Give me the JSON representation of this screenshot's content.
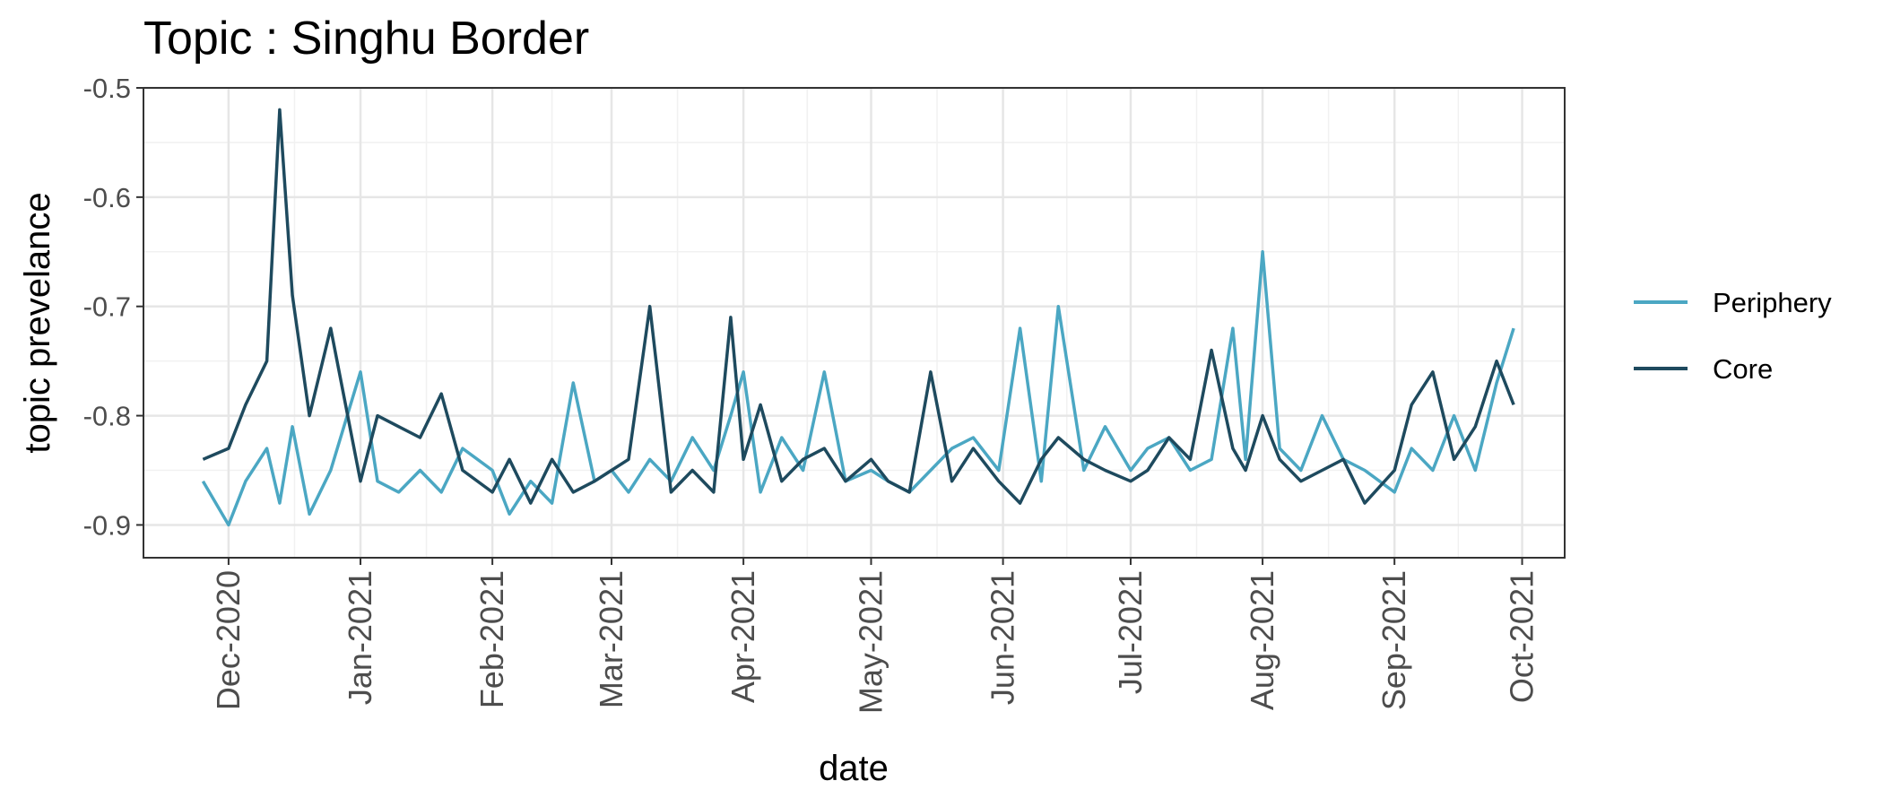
{
  "chart_data": {
    "type": "line",
    "title": "Topic : Singhu Border",
    "xlabel": "date",
    "ylabel": "topic prevelance",
    "ylim": [
      -0.93,
      -0.5
    ],
    "yticks": [
      -0.9,
      -0.8,
      -0.7,
      -0.6,
      -0.5
    ],
    "ytick_labels": [
      "-0.9",
      "-0.8",
      "-0.7",
      "-0.6",
      "-0.5"
    ],
    "xlim": [
      "2020-11-11",
      "2021-10-11"
    ],
    "xticks": [
      "2020-12-01",
      "2021-01-01",
      "2021-02-01",
      "2021-03-01",
      "2021-04-01",
      "2021-05-01",
      "2021-06-01",
      "2021-07-01",
      "2021-08-01",
      "2021-09-01",
      "2021-10-01"
    ],
    "xtick_labels": [
      "Dec-2020",
      "Jan-2021",
      "Feb-2021",
      "Mar-2021",
      "Apr-2021",
      "May-2021",
      "Jun-2021",
      "Jul-2021",
      "Aug-2021",
      "Sep-2021",
      "Oct-2021"
    ],
    "grid": true,
    "legend_position": "right",
    "x": [
      "2020-11-25",
      "2020-12-01",
      "2020-12-05",
      "2020-12-10",
      "2020-12-13",
      "2020-12-16",
      "2020-12-20",
      "2020-12-25",
      "2021-01-01",
      "2021-01-05",
      "2021-01-10",
      "2021-01-15",
      "2021-01-20",
      "2021-01-25",
      "2021-02-01",
      "2021-02-05",
      "2021-02-10",
      "2021-02-15",
      "2021-02-20",
      "2021-02-25",
      "2021-03-01",
      "2021-03-05",
      "2021-03-10",
      "2021-03-15",
      "2021-03-20",
      "2021-03-25",
      "2021-03-29",
      "2021-04-01",
      "2021-04-05",
      "2021-04-10",
      "2021-04-15",
      "2021-04-20",
      "2021-04-25",
      "2021-05-01",
      "2021-05-05",
      "2021-05-10",
      "2021-05-15",
      "2021-05-20",
      "2021-05-25",
      "2021-05-31",
      "2021-06-05",
      "2021-06-10",
      "2021-06-14",
      "2021-06-20",
      "2021-06-25",
      "2021-07-01",
      "2021-07-05",
      "2021-07-10",
      "2021-07-15",
      "2021-07-20",
      "2021-07-25",
      "2021-07-28",
      "2021-08-01",
      "2021-08-05",
      "2021-08-10",
      "2021-08-15",
      "2021-08-20",
      "2021-08-25",
      "2021-09-01",
      "2021-09-05",
      "2021-09-10",
      "2021-09-15",
      "2021-09-20",
      "2021-09-25",
      "2021-09-29"
    ],
    "series": [
      {
        "name": "Periphery",
        "color": "#4ba7c3",
        "values": [
          -0.86,
          -0.9,
          -0.86,
          -0.83,
          -0.88,
          -0.81,
          -0.89,
          -0.85,
          -0.76,
          -0.86,
          -0.87,
          -0.85,
          -0.87,
          -0.83,
          -0.85,
          -0.89,
          -0.86,
          -0.88,
          -0.77,
          -0.86,
          -0.85,
          -0.87,
          -0.84,
          -0.86,
          -0.82,
          -0.85,
          -0.8,
          -0.76,
          -0.87,
          -0.82,
          -0.85,
          -0.76,
          -0.86,
          -0.85,
          -0.86,
          -0.87,
          -0.85,
          -0.83,
          -0.82,
          -0.85,
          -0.72,
          -0.86,
          -0.7,
          -0.85,
          -0.81,
          -0.85,
          -0.83,
          -0.82,
          -0.85,
          -0.84,
          -0.72,
          -0.84,
          -0.65,
          -0.83,
          -0.85,
          -0.8,
          -0.84,
          -0.85,
          -0.87,
          -0.83,
          -0.85,
          -0.8,
          -0.85,
          -0.77,
          -0.72
        ]
      },
      {
        "name": "Core",
        "color": "#1e4a5e",
        "values": [
          -0.84,
          -0.83,
          -0.79,
          -0.75,
          -0.52,
          -0.69,
          -0.8,
          -0.72,
          -0.86,
          -0.8,
          -0.81,
          -0.82,
          -0.78,
          -0.85,
          -0.87,
          -0.84,
          -0.88,
          -0.84,
          -0.87,
          -0.86,
          -0.85,
          -0.84,
          -0.7,
          -0.87,
          -0.85,
          -0.87,
          -0.71,
          -0.84,
          -0.79,
          -0.86,
          -0.84,
          -0.83,
          -0.86,
          -0.84,
          -0.86,
          -0.87,
          -0.76,
          -0.86,
          -0.83,
          -0.86,
          -0.88,
          -0.84,
          -0.82,
          -0.84,
          -0.85,
          -0.86,
          -0.85,
          -0.82,
          -0.84,
          -0.74,
          -0.83,
          -0.85,
          -0.8,
          -0.84,
          -0.86,
          -0.85,
          -0.84,
          -0.88,
          -0.85,
          -0.79,
          -0.76,
          -0.84,
          -0.81,
          -0.75,
          -0.79
        ]
      }
    ]
  }
}
